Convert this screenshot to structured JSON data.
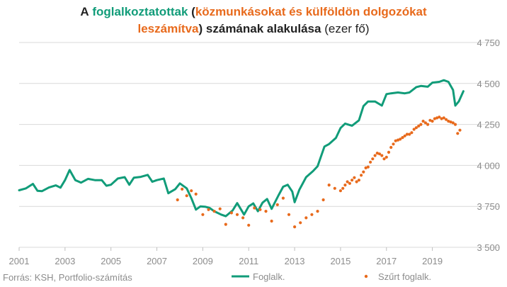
{
  "title": {
    "line1": {
      "prefix": "A",
      "green": "foglalkoztatottak",
      "open_paren": "(",
      "orange": "közmunkásokat és külföldön dolgozókat"
    },
    "line2": {
      "orange": "leszámítva",
      "close_paren": ")",
      "bold": "számának alakulása",
      "normal": "(ezer fő)"
    }
  },
  "source": "Forrás: KSH, Portfolio-számítás",
  "colors": {
    "foglalk": "#119c79",
    "szurt": "#e86a1c",
    "grid": "#d9d9d9",
    "axis_text": "#8c8c8c"
  },
  "chart_data": {
    "type": "line",
    "ylim": [
      3500,
      4750
    ],
    "xlim": [
      2001,
      2020.4
    ],
    "y_ticks": [
      3500,
      3750,
      4000,
      4250,
      4500,
      4750
    ],
    "y_tick_labels": [
      "3 500",
      "3 750",
      "4 000",
      "4 250",
      "4 500",
      "4 750"
    ],
    "x_ticks": [
      2001,
      2003,
      2005,
      2007,
      2009,
      2011,
      2013,
      2015,
      2017,
      2019
    ],
    "x_tick_labels": [
      "2001",
      "2003",
      "2005",
      "2007",
      "2009",
      "2011",
      "2013",
      "2015",
      "2017",
      "2019"
    ],
    "grid": true,
    "legend_position": "bottom",
    "series": [
      {
        "name": "Foglalk.",
        "style": "line",
        "x": [
          2001.0,
          2001.3,
          2001.6,
          2001.8,
          2002.0,
          2002.3,
          2002.6,
          2002.8,
          2003.0,
          2003.2,
          2003.45,
          2003.7,
          2004.0,
          2004.3,
          2004.6,
          2004.8,
          2005.0,
          2005.3,
          2005.6,
          2005.8,
          2006.0,
          2006.3,
          2006.6,
          2006.8,
          2007.0,
          2007.3,
          2007.5,
          2007.8,
          2008.0,
          2008.3,
          2008.5,
          2008.7,
          2008.9,
          2009.1,
          2009.3,
          2009.5,
          2009.8,
          2010.0,
          2010.3,
          2010.5,
          2010.8,
          2011.0,
          2011.2,
          2011.4,
          2011.6,
          2011.8,
          2012.0,
          2012.3,
          2012.5,
          2012.7,
          2012.9,
          2013.0,
          2013.2,
          2013.5,
          2013.8,
          2014.0,
          2014.3,
          2014.5,
          2014.8,
          2015.0,
          2015.2,
          2015.5,
          2015.8,
          2016.0,
          2016.2,
          2016.5,
          2016.8,
          2017.0,
          2017.2,
          2017.5,
          2017.8,
          2018.0,
          2018.3,
          2018.5,
          2018.8,
          2019.0,
          2019.3,
          2019.5,
          2019.7,
          2019.9,
          2020.0,
          2020.15,
          2020.35
        ],
        "y": [
          3848,
          3860,
          3887,
          3845,
          3843,
          3865,
          3878,
          3864,
          3910,
          3972,
          3910,
          3895,
          3918,
          3910,
          3910,
          3876,
          3882,
          3920,
          3928,
          3882,
          3925,
          3930,
          3942,
          3900,
          3910,
          3920,
          3830,
          3855,
          3890,
          3860,
          3800,
          3730,
          3750,
          3748,
          3740,
          3720,
          3700,
          3690,
          3725,
          3770,
          3700,
          3750,
          3768,
          3720,
          3772,
          3795,
          3735,
          3818,
          3870,
          3882,
          3840,
          3775,
          3850,
          3928,
          3965,
          3995,
          4115,
          4130,
          4168,
          4228,
          4255,
          4242,
          4275,
          4362,
          4390,
          4390,
          4365,
          4435,
          4440,
          4445,
          4440,
          4445,
          4478,
          4485,
          4480,
          4505,
          4510,
          4520,
          4510,
          4460,
          4365,
          4390,
          4453
        ]
      },
      {
        "name": "Szűrt foglalk.",
        "style": "dots",
        "x": [
          2007.9,
          2008.1,
          2008.3,
          2008.5,
          2008.7,
          2009.0,
          2009.25,
          2009.5,
          2009.75,
          2010.0,
          2010.25,
          2010.5,
          2010.75,
          2011.0,
          2011.25,
          2011.5,
          2011.75,
          2012.0,
          2012.25,
          2012.5,
          2012.75,
          2013.0,
          2013.25,
          2013.5,
          2013.75,
          2014.0,
          2014.25,
          2014.5,
          2014.75,
          2015.0,
          2015.1,
          2015.2,
          2015.3,
          2015.4,
          2015.5,
          2015.6,
          2015.7,
          2015.8,
          2015.9,
          2016.0,
          2016.1,
          2016.2,
          2016.3,
          2016.4,
          2016.5,
          2016.6,
          2016.7,
          2016.8,
          2016.9,
          2017.0,
          2017.1,
          2017.2,
          2017.3,
          2017.4,
          2017.5,
          2017.6,
          2017.7,
          2017.8,
          2017.9,
          2018.0,
          2018.1,
          2018.2,
          2018.3,
          2018.4,
          2018.5,
          2018.6,
          2018.7,
          2018.8,
          2018.9,
          2019.0,
          2019.1,
          2019.2,
          2019.3,
          2019.4,
          2019.5,
          2019.6,
          2019.7,
          2019.8,
          2019.9,
          2020.0,
          2020.1,
          2020.2
        ],
        "y": [
          3790,
          3855,
          3815,
          3845,
          3825,
          3700,
          3730,
          3720,
          3735,
          3640,
          3710,
          3700,
          3680,
          3635,
          3740,
          3730,
          3720,
          3660,
          3760,
          3800,
          3700,
          3625,
          3650,
          3680,
          3700,
          3720,
          3790,
          3880,
          3860,
          3845,
          3860,
          3880,
          3900,
          3890,
          3910,
          3925,
          3900,
          3910,
          3940,
          3960,
          3985,
          3990,
          4020,
          4040,
          4060,
          4075,
          4070,
          4060,
          4040,
          4050,
          4080,
          4110,
          4130,
          4150,
          4155,
          4160,
          4170,
          4180,
          4190,
          4190,
          4200,
          4220,
          4230,
          4240,
          4250,
          4270,
          4260,
          4250,
          4275,
          4270,
          4285,
          4290,
          4295,
          4285,
          4290,
          4280,
          4270,
          4265,
          4260,
          4250,
          4195,
          4215
        ]
      }
    ]
  }
}
